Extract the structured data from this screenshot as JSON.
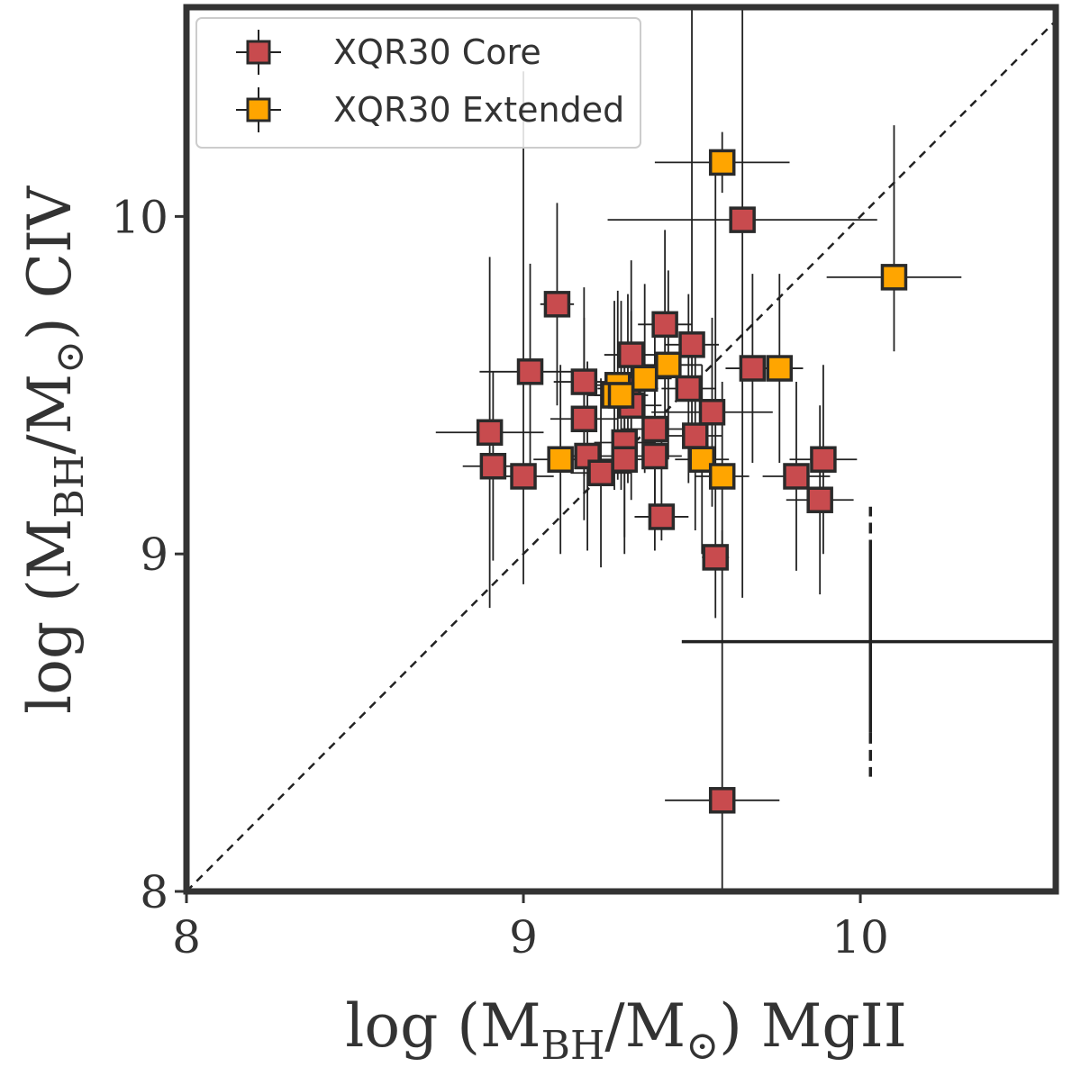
{
  "chart_data": {
    "type": "scatter",
    "xlabel_parts": [
      "log (M",
      "BH",
      "/M",
      "⊙",
      ") MgII"
    ],
    "ylabel_parts": [
      "log (M",
      "BH",
      "/M",
      "⊙",
      ") CIV"
    ],
    "xlim": [
      8.0,
      10.58
    ],
    "ylim": [
      8.0,
      10.62
    ],
    "xticks": [
      8,
      9,
      10
    ],
    "yticks": [
      8,
      9,
      10
    ],
    "xtick_labels": [
      "8",
      "9",
      "10"
    ],
    "ytick_labels": [
      "8",
      "9",
      "10"
    ],
    "legend": {
      "position": "top-left",
      "entries": [
        {
          "label": "XQR30 Core",
          "color": "#c84b4e"
        },
        {
          "label": "XQR30 Extended",
          "color": "#ffa500"
        }
      ]
    },
    "one_to_one_line": true,
    "systematic_error_bar": {
      "x": 10.03,
      "y": 8.74,
      "x_err_low": 0.56,
      "x_err_high": 0.57,
      "y_err_solid": 0.27,
      "y_err_dashed": 0.4
    },
    "series": [
      {
        "name": "XQR30 Core",
        "color": "#c84b4e",
        "points": [
          {
            "x": 9.1,
            "y": 9.74,
            "ex": 0.05,
            "eyl": 0.3,
            "eyh": 0.3
          },
          {
            "x": 9.02,
            "y": 9.54,
            "ex": 0.15,
            "eyl": 0.32,
            "eyh": 0.32
          },
          {
            "x": 8.9,
            "y": 9.36,
            "ex": 0.16,
            "eyl": 0.52,
            "eyh": 0.52
          },
          {
            "x": 8.91,
            "y": 9.26,
            "ex": 0.09,
            "eyl": 0.28,
            "eyh": 0.28
          },
          {
            "x": 9.0,
            "y": 9.23,
            "ex": 0.09,
            "eyl": 0.32,
            "eyh": 1.2
          },
          {
            "x": 9.18,
            "y": 9.51,
            "ex": 0.09,
            "eyl": 0.28,
            "eyh": 0.28
          },
          {
            "x": 9.18,
            "y": 9.4,
            "ex": 0.1,
            "eyl": 0.3,
            "eyh": 0.3
          },
          {
            "x": 9.19,
            "y": 9.29,
            "ex": 0.09,
            "eyl": 0.28,
            "eyh": 0.28
          },
          {
            "x": 9.23,
            "y": 9.24,
            "ex": 0.09,
            "eyl": 0.28,
            "eyh": 0.28
          },
          {
            "x": 9.32,
            "y": 9.59,
            "ex": 0.08,
            "eyl": 0.28,
            "eyh": 0.28
          },
          {
            "x": 9.31,
            "y": 9.49,
            "ex": 0.09,
            "eyl": 0.28,
            "eyh": 0.28
          },
          {
            "x": 9.32,
            "y": 9.44,
            "ex": 0.09,
            "eyl": 0.28,
            "eyh": 0.28
          },
          {
            "x": 9.3,
            "y": 9.33,
            "ex": 0.09,
            "eyl": 0.28,
            "eyh": 0.28
          },
          {
            "x": 9.3,
            "y": 9.28,
            "ex": 0.09,
            "eyl": 0.28,
            "eyh": 0.28
          },
          {
            "x": 9.39,
            "y": 9.37,
            "ex": 0.1,
            "eyl": 0.3,
            "eyh": 0.3
          },
          {
            "x": 9.39,
            "y": 9.29,
            "ex": 0.08,
            "eyl": 0.28,
            "eyh": 0.28
          },
          {
            "x": 9.42,
            "y": 9.68,
            "ex": 0.08,
            "eyl": 0.28,
            "eyh": 0.28
          },
          {
            "x": 9.41,
            "y": 9.11,
            "ex": 0.08,
            "eyl": 0.07,
            "eyh": 0.28
          },
          {
            "x": 9.5,
            "y": 9.62,
            "ex": 0.08,
            "eyl": 0.28,
            "eyh": 1.2
          },
          {
            "x": 9.49,
            "y": 9.49,
            "ex": 0.08,
            "eyl": 0.28,
            "eyh": 0.28
          },
          {
            "x": 9.51,
            "y": 9.35,
            "ex": 0.08,
            "eyl": 0.28,
            "eyh": 0.28
          },
          {
            "x": 9.56,
            "y": 9.42,
            "ex": 0.18,
            "eyl": 0.28,
            "eyh": 0.28
          },
          {
            "x": 9.57,
            "y": 8.99,
            "ex": 0.04,
            "eyl": 0.18,
            "eyh": 1.2
          },
          {
            "x": 9.59,
            "y": 8.27,
            "ex": 0.17,
            "eyl": 0.27,
            "eyh": 0.8
          },
          {
            "x": 9.65,
            "y": 9.99,
            "ex": 0.4,
            "eyl": 1.12,
            "eyh": 1.2
          },
          {
            "x": 9.68,
            "y": 9.55,
            "ex": 0.08,
            "eyl": 0.28,
            "eyh": 0.28
          },
          {
            "x": 9.81,
            "y": 9.23,
            "ex": 0.1,
            "eyl": 0.28,
            "eyh": 0.28
          },
          {
            "x": 9.89,
            "y": 9.28,
            "ex": 0.1,
            "eyl": 0.28,
            "eyh": 0.28
          },
          {
            "x": 9.88,
            "y": 9.16,
            "ex": 0.1,
            "eyl": 0.28,
            "eyh": 0.28
          }
        ]
      },
      {
        "name": "XQR30 Extended",
        "color": "#ffa500",
        "points": [
          {
            "x": 9.59,
            "y": 10.16,
            "ex": 0.2,
            "eyl": 0.09,
            "eyh": 0.09
          },
          {
            "x": 10.1,
            "y": 9.82,
            "ex": 0.2,
            "eyl": 0.22,
            "eyh": 0.45
          },
          {
            "x": 9.76,
            "y": 9.55,
            "ex": 0.07,
            "eyl": 0.28,
            "eyh": 0.28
          },
          {
            "x": 9.43,
            "y": 9.56,
            "ex": 0.1,
            "eyl": 0.28,
            "eyh": 0.28
          },
          {
            "x": 9.36,
            "y": 9.52,
            "ex": 0.08,
            "eyl": 0.28,
            "eyh": 0.28
          },
          {
            "x": 9.28,
            "y": 9.5,
            "ex": 0.08,
            "eyl": 0.28,
            "eyh": 0.28
          },
          {
            "x": 9.27,
            "y": 9.47,
            "ex": 0.08,
            "eyl": 0.28,
            "eyh": 0.28
          },
          {
            "x": 9.29,
            "y": 9.47,
            "ex": 0.08,
            "eyl": 0.28,
            "eyh": 0.28
          },
          {
            "x": 9.11,
            "y": 9.28,
            "ex": 0.08,
            "eyl": 0.28,
            "eyh": 0.28
          },
          {
            "x": 9.53,
            "y": 9.28,
            "ex": 0.08,
            "eyl": 0.28,
            "eyh": 0.28
          },
          {
            "x": 9.59,
            "y": 9.23,
            "ex": 0.08,
            "eyl": 0.28,
            "eyh": 0.28
          }
        ]
      }
    ]
  }
}
